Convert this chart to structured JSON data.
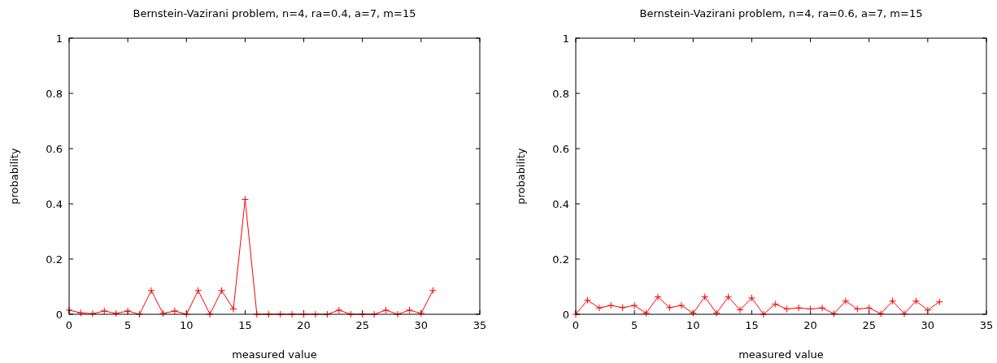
{
  "chart_data": [
    {
      "type": "line",
      "title": "Bernstein-Vazirani problem, n=4, ra=0.4, a=7, m=15",
      "xlabel": "measured value",
      "ylabel": "probability",
      "x": [
        0,
        1,
        2,
        3,
        4,
        5,
        6,
        7,
        8,
        9,
        10,
        11,
        12,
        13,
        14,
        15,
        16,
        17,
        18,
        19,
        20,
        21,
        22,
        23,
        24,
        25,
        26,
        27,
        28,
        29,
        30,
        31
      ],
      "series": [
        {
          "color": "#ff0000",
          "values": [
            0.015,
            0.005,
            0.002,
            0.012,
            0.003,
            0.012,
            0,
            0.086,
            0.003,
            0.012,
            0,
            0.086,
            0,
            0.086,
            0.019,
            0.416,
            0,
            0,
            0,
            0,
            0,
            0,
            0,
            0.015,
            0,
            0,
            0,
            0.015,
            0,
            0.015,
            0.003,
            0.086
          ]
        }
      ],
      "xlim": [
        0,
        35
      ],
      "xticks": [
        0,
        5,
        10,
        15,
        20,
        25,
        30,
        35
      ],
      "ylim": [
        0,
        1
      ],
      "yticks": [
        0,
        0.2,
        0.4,
        0.6,
        0.8,
        1
      ],
      "marker": "cross",
      "grid": false
    },
    {
      "type": "line",
      "title": "Bernstein-Vazirani problem, n=4, ra=0.6, a=7, m=15",
      "xlabel": "measured value",
      "ylabel": "probability",
      "x": [
        0,
        1,
        2,
        3,
        4,
        5,
        6,
        7,
        8,
        9,
        10,
        11,
        12,
        13,
        14,
        15,
        16,
        17,
        18,
        19,
        20,
        21,
        22,
        23,
        24,
        25,
        26,
        27,
        28,
        29,
        30,
        31
      ],
      "series": [
        {
          "color": "#ff0000",
          "values": [
            0,
            0.051,
            0.023,
            0.032,
            0.024,
            0.032,
            0.004,
            0.063,
            0.024,
            0.032,
            0.004,
            0.063,
            0.004,
            0.063,
            0.016,
            0.059,
            0,
            0.037,
            0.019,
            0.023,
            0.019,
            0.023,
            0.002,
            0.048,
            0.019,
            0.023,
            0.002,
            0.048,
            0.002,
            0.048,
            0.015,
            0.045
          ]
        }
      ],
      "xlim": [
        0,
        35
      ],
      "xticks": [
        0,
        5,
        10,
        15,
        20,
        25,
        30,
        35
      ],
      "ylim": [
        0,
        1
      ],
      "yticks": [
        0,
        0.2,
        0.4,
        0.6,
        0.8,
        1
      ],
      "marker": "cross",
      "grid": false
    }
  ]
}
